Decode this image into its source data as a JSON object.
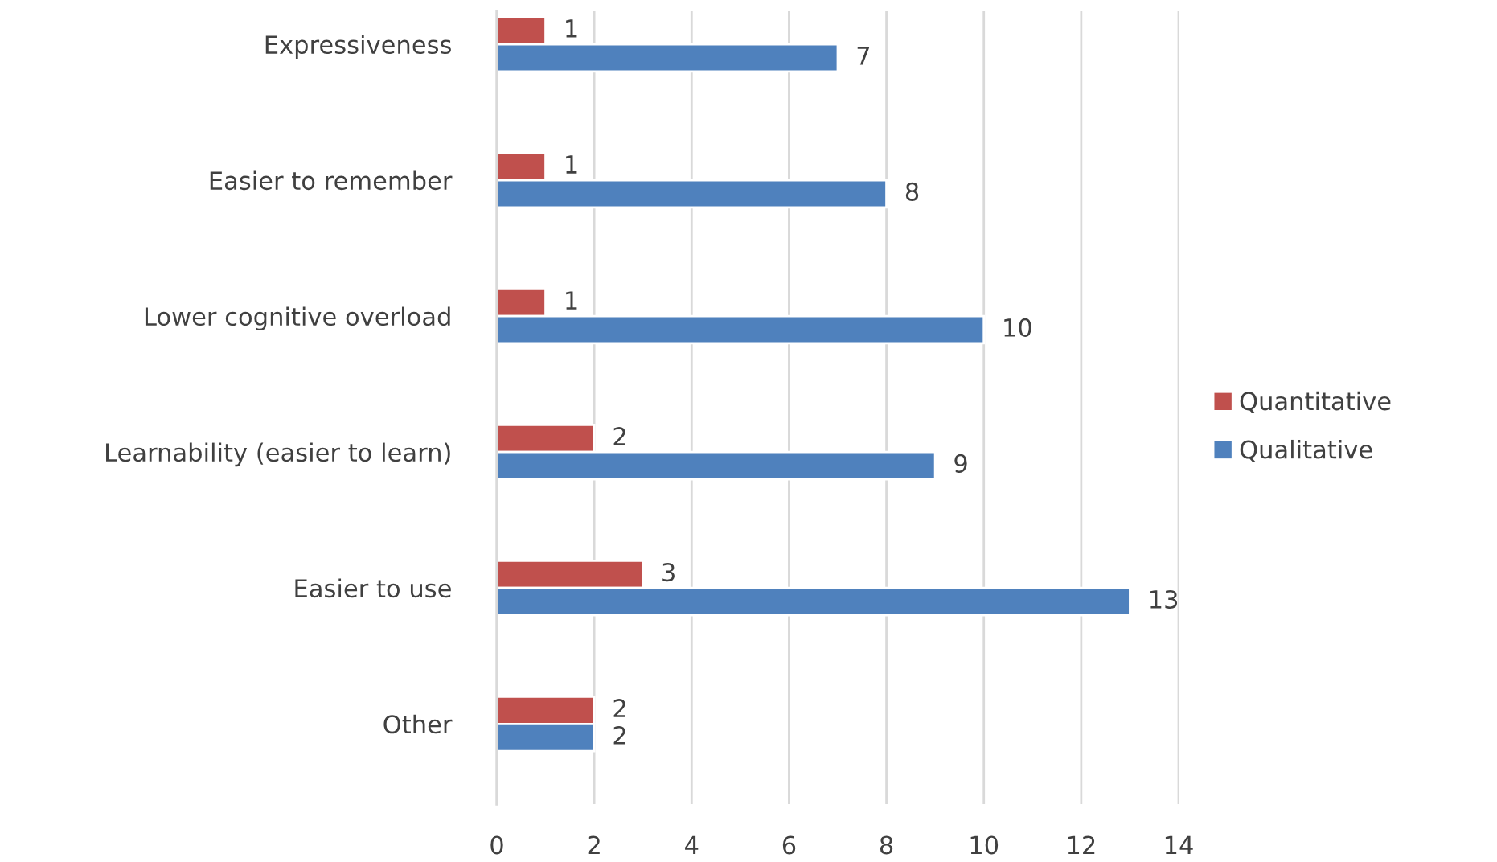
{
  "chart_data": {
    "type": "bar",
    "orientation": "horizontal",
    "categories": [
      "Expressiveness",
      "Easier to remember",
      "Lower cognitive overload",
      "Learnability (easier to learn)",
      "Easier to use",
      "Other"
    ],
    "series": [
      {
        "name": "Quantitative",
        "color": "#c0504d",
        "values": [
          1,
          1,
          1,
          2,
          3,
          2
        ]
      },
      {
        "name": "Qualitative",
        "color": "#4f81bd",
        "values": [
          7,
          8,
          10,
          9,
          13,
          2
        ]
      }
    ],
    "xlim": [
      0,
      14
    ],
    "xticks": [
      0,
      2,
      4,
      6,
      8,
      10,
      12,
      14
    ],
    "grid": "x",
    "legend": "right",
    "data_labels": true
  }
}
